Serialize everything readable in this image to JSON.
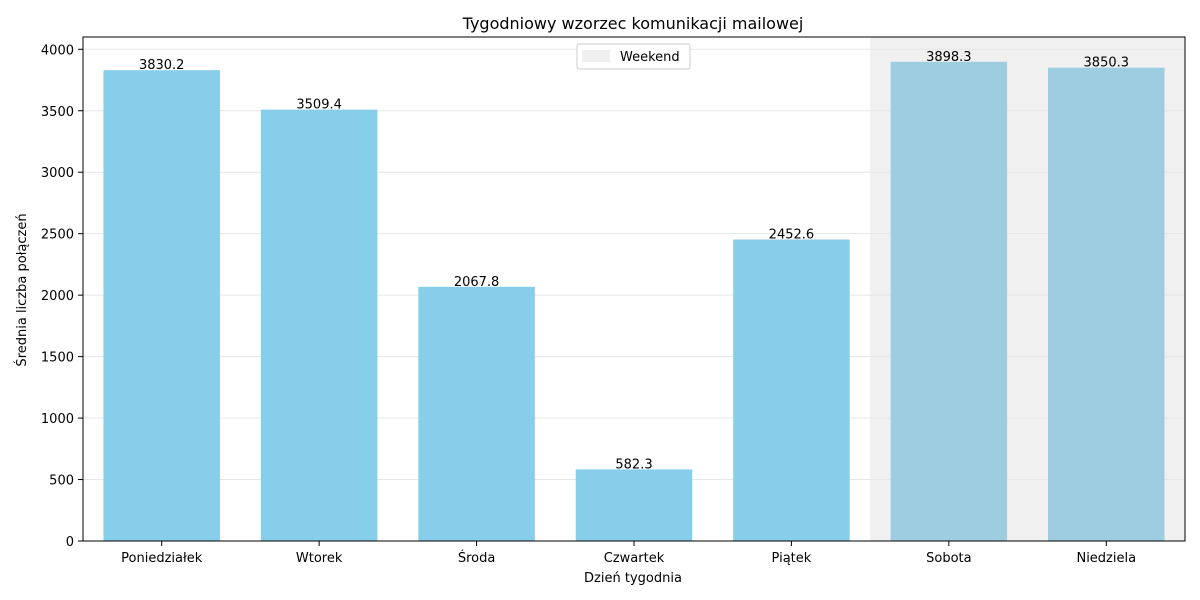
{
  "chart_data": {
    "type": "bar",
    "title": "Tygodniowy wzorzec komunikacji mailowej",
    "xlabel": "Dzień tygodnia",
    "ylabel": "Średnia liczba połączeń",
    "categories": [
      "Poniedziałek",
      "Wtorek",
      "Środa",
      "Czwartek",
      "Piątek",
      "Sobota",
      "Niedziela"
    ],
    "values": [
      3830.2,
      3509.4,
      2067.8,
      582.3,
      2452.6,
      3898.3,
      3850.3
    ],
    "value_labels": [
      "3830.2",
      "3509.4",
      "2067.8",
      "582.3",
      "2452.6",
      "3898.3",
      "3850.3"
    ],
    "ylim": [
      0,
      4100
    ],
    "yticks": [
      0,
      500,
      1000,
      1500,
      2000,
      2500,
      3000,
      3500,
      4000
    ],
    "ytick_labels": [
      "0",
      "500",
      "1000",
      "1500",
      "2000",
      "2500",
      "3000",
      "3500",
      "4000"
    ],
    "grid": "horizontal",
    "legend": {
      "placement": "top-center",
      "entries": [
        "Weekend"
      ]
    },
    "weekend_span": {
      "from": "Sobota",
      "to": "Niedziela",
      "label": "Weekend"
    },
    "colors": {
      "bar": "#87ceeb",
      "weekend_bar": "#9ecde0",
      "weekend_shade": "#f0f0f0",
      "grid": "#e6e6e6"
    }
  }
}
